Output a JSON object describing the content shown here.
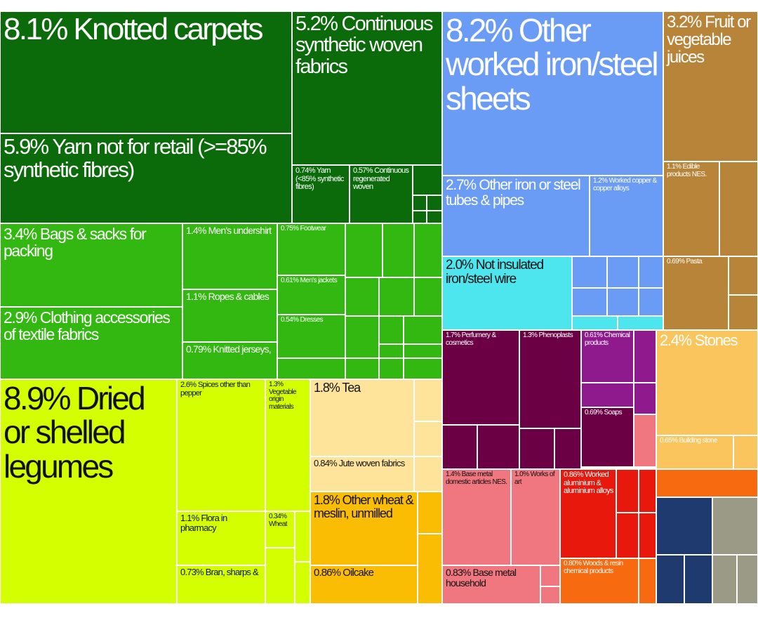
{
  "chart_data": {
    "type": "treemap",
    "title": "",
    "colors": {
      "textiles_dark": "#0b6b0b",
      "textiles_light": "#33b811",
      "vegetable": "#d4ff00",
      "food_tan": "#fde49a",
      "food_orange": "#fbbd03",
      "metals": "#6b9cf5",
      "metals_cyan": "#4de6ee",
      "chemicals": "#6b0045",
      "chemicals_purple": "#8e1a8e",
      "base_metal": "#f0767f",
      "plastics_red": "#e8180d",
      "wood_orange": "#f76a0f",
      "fruit_brown": "#b8843a",
      "stones": "#fac55c",
      "misc_navy": "#1f3a6e",
      "misc_grey": "#9a9a86"
    },
    "items": [
      {
        "label": "8.1% Knotted carpets",
        "value": 8.1
      },
      {
        "label": "5.2% Continuous synthetic woven fabrics",
        "value": 5.2
      },
      {
        "label": "5.9% Yarn not for retail (>=85% synthetic fibres)",
        "value": 5.9
      },
      {
        "label": "0.74% Yarn (<85% synthetic fibres)",
        "value": 0.74
      },
      {
        "label": "0.57% Continuous regenerated woven",
        "value": 0.57
      },
      {
        "label": "3.4% Bags & sacks for packing",
        "value": 3.4
      },
      {
        "label": "1.4% Men's undershirt",
        "value": 1.4
      },
      {
        "label": "0.75% Footwear",
        "value": 0.75
      },
      {
        "label": "0.61% Men's jackets",
        "value": 0.61
      },
      {
        "label": "1.1% Ropes & cables",
        "value": 1.1
      },
      {
        "label": "0.54% Dresses",
        "value": 0.54
      },
      {
        "label": "2.9% Clothing accessories of textile fabrics",
        "value": 2.9
      },
      {
        "label": "0.79% Knitted jerseys,",
        "value": 0.79
      },
      {
        "label": "8.9% Dried or shelled legumes",
        "value": 8.9
      },
      {
        "label": "2.6% Spices other than pepper",
        "value": 2.6
      },
      {
        "label": "1.3% Vegetable origin materials",
        "value": 1.3
      },
      {
        "label": "1.8% Tea",
        "value": 1.8
      },
      {
        "label": "0.84% Jute woven fabrics",
        "value": 0.84
      },
      {
        "label": "1.8% Other wheat & meslin, unmilled",
        "value": 1.8
      },
      {
        "label": "1.1% Flora in pharmacy",
        "value": 1.1
      },
      {
        "label": "0.34% Wheat",
        "value": 0.34
      },
      {
        "label": "0.73% Bran, sharps &",
        "value": 0.73
      },
      {
        "label": "0.86% Oilcake",
        "value": 0.86
      },
      {
        "label": "8.2% Other worked iron/steel sheets",
        "value": 8.2
      },
      {
        "label": "2.7% Other iron or steel tubes & pipes",
        "value": 2.7
      },
      {
        "label": "1.2% Worked copper & copper alloys",
        "value": 1.2
      },
      {
        "label": "2.0% Not insulated iron/steel wire",
        "value": 2.0
      },
      {
        "label": "3.2% Fruit or vegetable juices",
        "value": 3.2
      },
      {
        "label": "1.1% Edible products NES.",
        "value": 1.1
      },
      {
        "label": "0.69% Pasta",
        "value": 0.69
      },
      {
        "label": "1.7% Perfumery & cosmetics",
        "value": 1.7
      },
      {
        "label": "1.3% Phenoplasts",
        "value": 1.3
      },
      {
        "label": "0.61% Chemical products",
        "value": 0.61
      },
      {
        "label": "0.69% Soaps",
        "value": 0.69
      },
      {
        "label": "2.4% Stones",
        "value": 2.4
      },
      {
        "label": "0.65% Building stone",
        "value": 0.65
      },
      {
        "label": "1.4% Base metal domestic articles NES.",
        "value": 1.4
      },
      {
        "label": "1.0% Works of art",
        "value": 1.0
      },
      {
        "label": "0.86% Worked aluminium & aluminium alloys",
        "value": 0.86
      },
      {
        "label": "0.83% Base metal household",
        "value": 0.83
      },
      {
        "label": "0.80% Woods & resin chemical products",
        "value": 0.8
      }
    ]
  }
}
